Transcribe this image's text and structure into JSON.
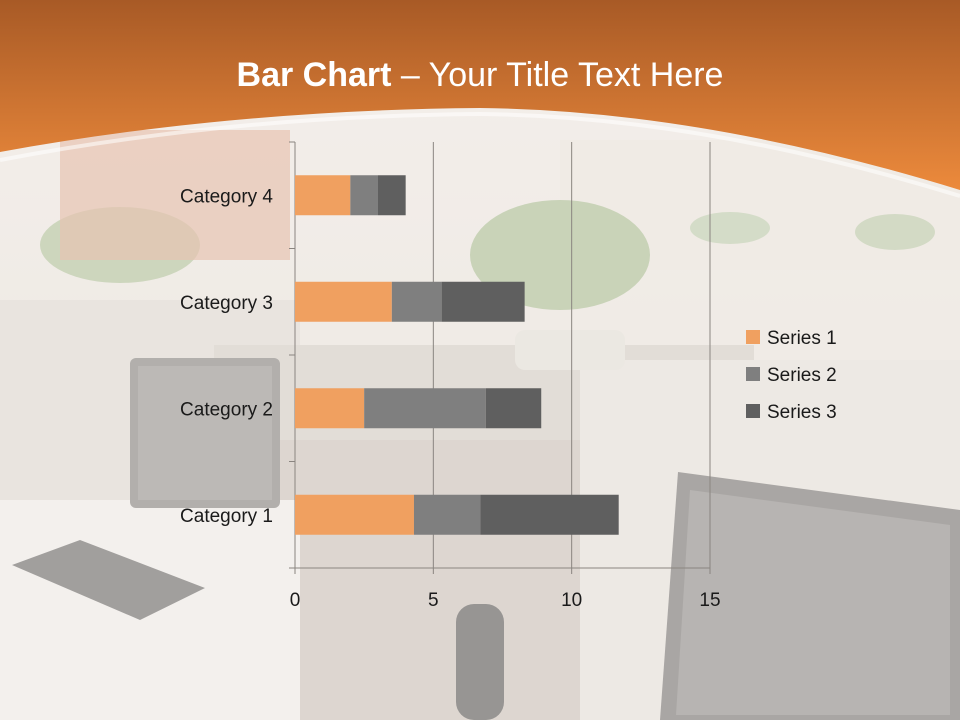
{
  "slide": {
    "title_bold": "Bar Chart",
    "title_dash": " – ",
    "title_rest": "Your Title Text Here"
  },
  "colors": {
    "header_top": "#a85a26",
    "header_bottom": "#e8843a",
    "series1": "#f0a060",
    "series2": "#7f7f7f",
    "series3": "#5f5f5f"
  },
  "chart_data": {
    "type": "bar",
    "orientation": "horizontal",
    "stacked": true,
    "categories": [
      "Category 1",
      "Category 2",
      "Category 3",
      "Category 4"
    ],
    "series": [
      {
        "name": "Series 1",
        "values": [
          4.3,
          2.5,
          3.5,
          2.0
        ]
      },
      {
        "name": "Series 2",
        "values": [
          2.4,
          4.4,
          1.8,
          1.0
        ]
      },
      {
        "name": "Series 3",
        "values": [
          5.0,
          2.0,
          3.0,
          1.0
        ]
      }
    ],
    "xlim": [
      0,
      15
    ],
    "xticks": [
      0,
      5,
      10,
      15
    ],
    "grid": true,
    "legend": "right"
  }
}
